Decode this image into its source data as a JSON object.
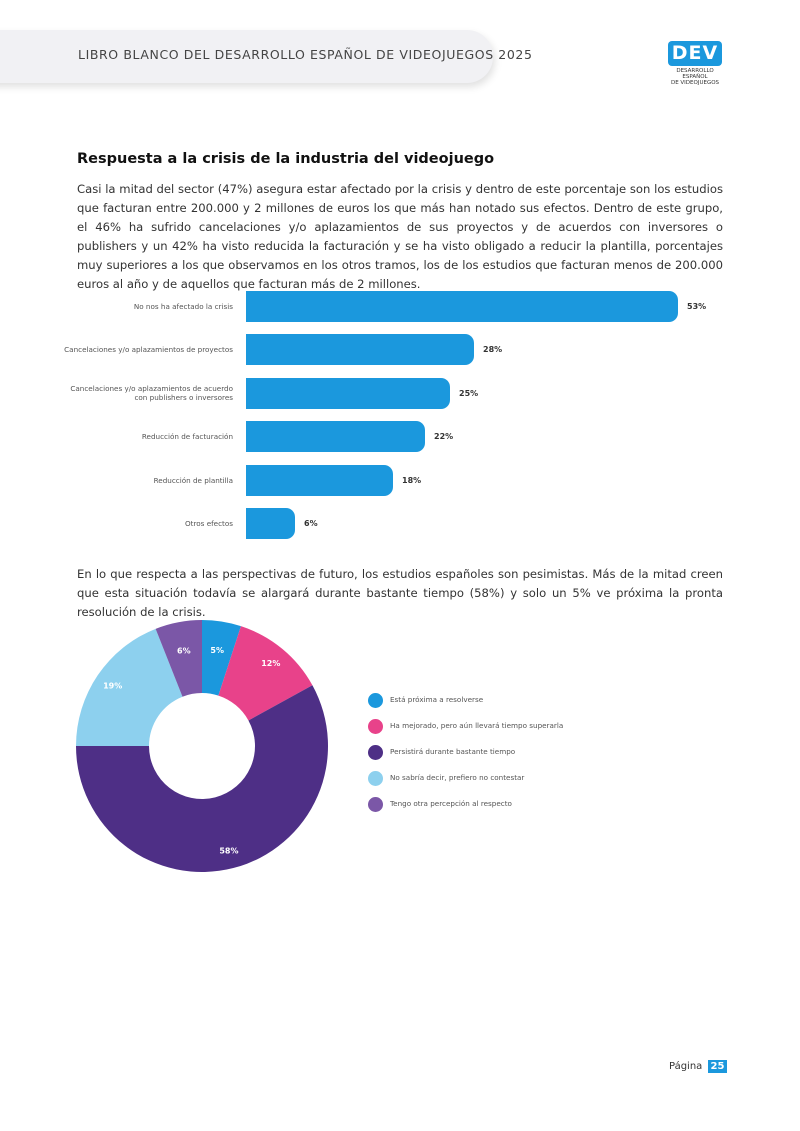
{
  "header": {
    "title": "LIBRO BLANCO DEL DESARROLLO ESPAÑOL DE VIDEOJUEGOS 2025",
    "logo_text": "DEV",
    "logo_sub_1": "DESARROLLO ESPAÑOL",
    "logo_sub_2": "DE VIDEOJUEGOS",
    "accent_color": "#1b98dd"
  },
  "section": {
    "title": "Respuesta a la crisis de la industria del videojuego",
    "paragraph_1": "Casi la mitad del sector (47%) asegura estar afectado por la crisis y dentro de este porcentaje son los estudios que facturan entre 200.000 y 2 millones de euros los que más han notado sus efectos. Dentro de este grupo, el 46% ha sufrido cancelaciones y/o aplazamientos de sus proyectos y de acuerdos con inversores o publishers y un 42% ha visto reducida la facturación y se ha visto obligado a reducir la plantilla, porcentajes muy superiores a los que observamos en los otros tramos, los de los estudios que facturan menos de 200.000 euros al año y de aquellos que facturan más de 2 millones.",
    "paragraph_2": "En lo que respecta a las perspectivas de futuro, los estudios españoles son pesimistas. Más de la mitad creen que esta situación todavía se alargará durante bastante tiempo (58%) y solo un 5% ve próxima la pronta resolución de la crisis."
  },
  "chart_data": [
    {
      "type": "bar",
      "orientation": "horizontal",
      "categories": [
        "No nos ha afectado la crisis",
        "Cancelaciones y/o aplazamientos de proyectos",
        "Cancelaciones y/o aplazamientos de acuerdo con publishers o inversores",
        "Reducción de facturación",
        "Reducción de plantilla",
        "Otros efectos"
      ],
      "values": [
        53,
        28,
        25,
        22,
        18,
        6
      ],
      "value_labels": [
        "53%",
        "28%",
        "25%",
        "22%",
        "18%",
        "6%"
      ],
      "unit": "%",
      "color": "#1b98dd",
      "xlim": [
        0,
        53
      ],
      "grid": false
    },
    {
      "type": "pie",
      "variant": "donut",
      "labels": [
        "Está próxima a resolverse",
        "Ha mejorado, pero aún llevará tiempo superarla",
        "Persistirá durante bastante tiempo",
        "No sabría decir, prefiero no contestar",
        "Tengo otra percepción al respecto"
      ],
      "values": [
        5,
        12,
        58,
        19,
        6
      ],
      "value_labels": [
        "5%",
        "12%",
        "58%",
        "19%",
        "6%"
      ],
      "colors": [
        "#1b98dd",
        "#e8428a",
        "#4e2f86",
        "#8dd0ee",
        "#7b57a7"
      ],
      "legend": "right"
    }
  ],
  "footer": {
    "page_label": "Página",
    "page_number": "25"
  }
}
